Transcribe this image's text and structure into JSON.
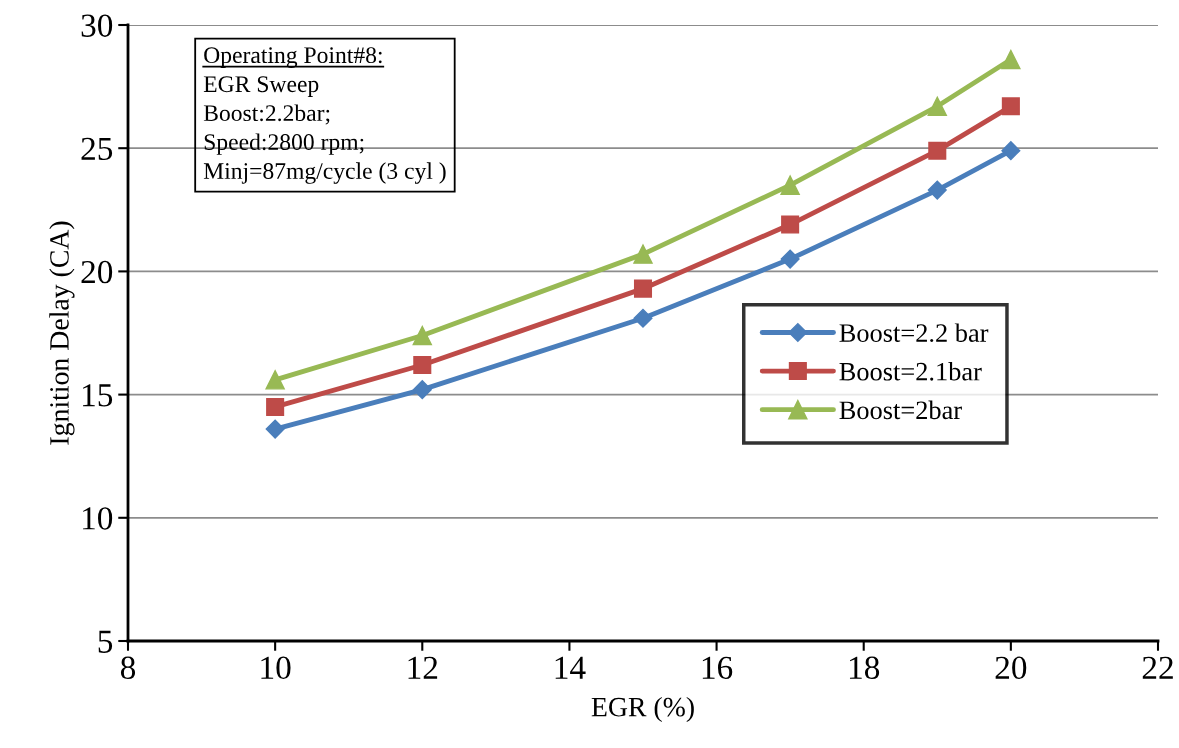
{
  "chart_data": {
    "type": "line",
    "xlabel": "EGR (%)",
    "ylabel": "Ignition Delay (CA)",
    "x": [
      10,
      12,
      15,
      17,
      19,
      20
    ],
    "series": [
      {
        "name": "Boost=2.2 bar",
        "color": "#4a7ebb",
        "marker": "diamond",
        "values": [
          13.6,
          15.2,
          18.1,
          20.5,
          23.3,
          24.9
        ]
      },
      {
        "name": "Boost=2.1bar",
        "color": "#be4b48",
        "marker": "square",
        "values": [
          14.5,
          16.2,
          19.3,
          21.9,
          24.9,
          26.7
        ]
      },
      {
        "name": "Boost=2bar",
        "color": "#98b954",
        "marker": "triangle",
        "values": [
          15.6,
          17.4,
          20.7,
          23.5,
          26.7,
          28.6
        ]
      }
    ],
    "xlim": [
      8,
      22
    ],
    "xticks": [
      8,
      10,
      12,
      14,
      16,
      18,
      20,
      22
    ],
    "ylim": [
      5,
      30
    ],
    "yticks": [
      5,
      10,
      15,
      20,
      25,
      30
    ],
    "grid": "y",
    "legend": "right",
    "line_style": "solid",
    "annotations": [
      "Operating Point#8:",
      "EGR Sweep",
      "Boost:2.2bar;",
      "Speed:2800 rpm;",
      "Minj=87mg/cycle (3 cyl )"
    ]
  }
}
